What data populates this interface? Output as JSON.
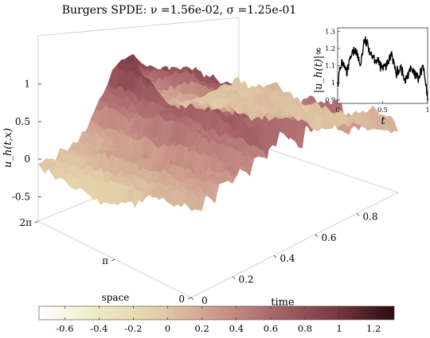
{
  "chart_data": [
    {
      "type": "surface",
      "title": "Burgers SPDE: ν =1.56e-02, σ =1.25e-01",
      "zlabel": "u_h(t,x)",
      "xlabel": "time",
      "ylabel": "space",
      "time_ticks": [
        "0",
        "0.2",
        "0.4",
        "0.6",
        "0.8"
      ],
      "time_tick_values": [
        0,
        0.2,
        0.4,
        0.6,
        0.8
      ],
      "space_ticks": [
        "0",
        "π",
        "2π"
      ],
      "space_tick_values": [
        0,
        3.14159,
        6.28319
      ],
      "z_ticks": [
        "-0.5",
        "0",
        "0.5",
        "1"
      ],
      "z_tick_values": [
        -0.5,
        0,
        0.5,
        1
      ],
      "time_range": [
        0,
        1
      ],
      "space_range": [
        0,
        6.28319
      ],
      "z_range": [
        -0.75,
        1.3
      ],
      "initial_profile_peak": 0.9,
      "colorbar": {
        "ticks": [
          "-0.6",
          "-0.4",
          "-0.2",
          "0",
          "0.2",
          "0.4",
          "0.6",
          "0.8",
          "1",
          "1.2"
        ],
        "tick_values": [
          -0.6,
          -0.4,
          -0.2,
          0,
          0.2,
          0.4,
          0.6,
          0.8,
          1,
          1.2
        ],
        "range": [
          -0.75,
          1.32
        ],
        "colors": [
          "#ffffff",
          "#eeeac2",
          "#e3cfa8",
          "#cc9a8c",
          "#a86468",
          "#7a3a42",
          "#2a0a10"
        ]
      }
    },
    {
      "type": "line",
      "ylabel": "|u_h(t)|∞",
      "xlabel": "t",
      "x_ticks": [
        "0",
        "0.5",
        "1"
      ],
      "x_tick_values": [
        0,
        0.5,
        1
      ],
      "y_ticks": [
        "0.9",
        "1",
        "1.1",
        "1.2",
        "1.3"
      ],
      "y_tick_values": [
        0.9,
        1.0,
        1.1,
        1.2,
        1.3
      ],
      "xlim": [
        0,
        1
      ],
      "ylim": [
        0.88,
        1.32
      ],
      "x": [
        0,
        0.05,
        0.1,
        0.15,
        0.2,
        0.25,
        0.3,
        0.35,
        0.4,
        0.45,
        0.5,
        0.55,
        0.6,
        0.65,
        0.7,
        0.75,
        0.8,
        0.85,
        0.9,
        0.95,
        1.0
      ],
      "y": [
        1.0,
        1.13,
        1.05,
        1.15,
        1.2,
        1.1,
        1.25,
        1.2,
        1.15,
        1.12,
        1.08,
        1.1,
        1.18,
        1.05,
        1.1,
        1.0,
        1.08,
        1.05,
        1.02,
        1.1,
        0.9
      ]
    }
  ]
}
